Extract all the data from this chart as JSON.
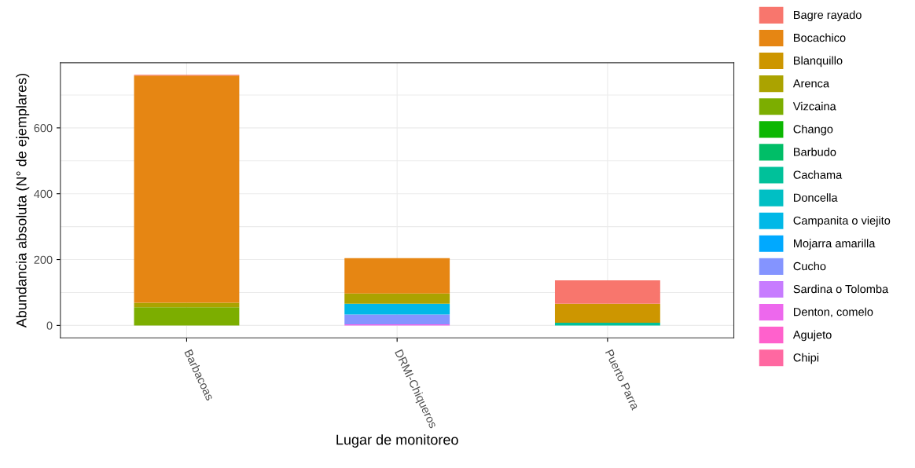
{
  "chart_data": {
    "type": "bar",
    "stacked": true,
    "xlabel": "Lugar de monitoreo",
    "ylabel": "Abundancia absoluta (N° de ejemplares)",
    "categories": [
      "Barbacoas",
      "DRMI-Chiqueros",
      "Puerto Parra"
    ],
    "ylim": [
      -38,
      798
    ],
    "yticks": [
      0,
      200,
      400,
      600
    ],
    "grid": true,
    "legend": "right",
    "series": [
      {
        "name": "Chipi",
        "color": "#ff68a1",
        "values": [
          null,
          null,
          null
        ]
      },
      {
        "name": "Agujeto",
        "color": "#ff61cc",
        "values": [
          null,
          null,
          null
        ]
      },
      {
        "name": "Denton, comelo",
        "color": "#ed68ed",
        "values": [
          null,
          3,
          null
        ]
      },
      {
        "name": "Sardina o Tolomba",
        "color": "#c77cff",
        "values": [
          null,
          null,
          null
        ]
      },
      {
        "name": "Cucho",
        "color": "#8494ff",
        "values": [
          null,
          30,
          null
        ]
      },
      {
        "name": "Mojarra amarilla",
        "color": "#00a9ff",
        "values": [
          null,
          null,
          null
        ]
      },
      {
        "name": "Campanita o viejito",
        "color": "#00b8e7",
        "values": [
          null,
          33,
          null
        ]
      },
      {
        "name": "Doncella",
        "color": "#00bfc4",
        "values": [
          null,
          null,
          null
        ]
      },
      {
        "name": "Cachama",
        "color": "#00c19a",
        "values": [
          null,
          null,
          8
        ]
      },
      {
        "name": "Barbudo",
        "color": "#00be67",
        "values": [
          null,
          null,
          null
        ]
      },
      {
        "name": "Chango",
        "color": "#0cb702",
        "values": [
          null,
          null,
          null
        ]
      },
      {
        "name": "Vizcaina",
        "color": "#7cae00",
        "values": [
          55,
          null,
          null
        ]
      },
      {
        "name": "Arenca",
        "color": "#aba300",
        "values": [
          14,
          31,
          null
        ]
      },
      {
        "name": "Blanquillo",
        "color": "#cd9600",
        "values": [
          null,
          null,
          58
        ]
      },
      {
        "name": "Bocachico",
        "color": "#e68613",
        "values": [
          690,
          107,
          null
        ]
      },
      {
        "name": "Bagre rayado",
        "color": "#f8766d",
        "values": [
          2,
          null,
          71
        ]
      }
    ]
  }
}
